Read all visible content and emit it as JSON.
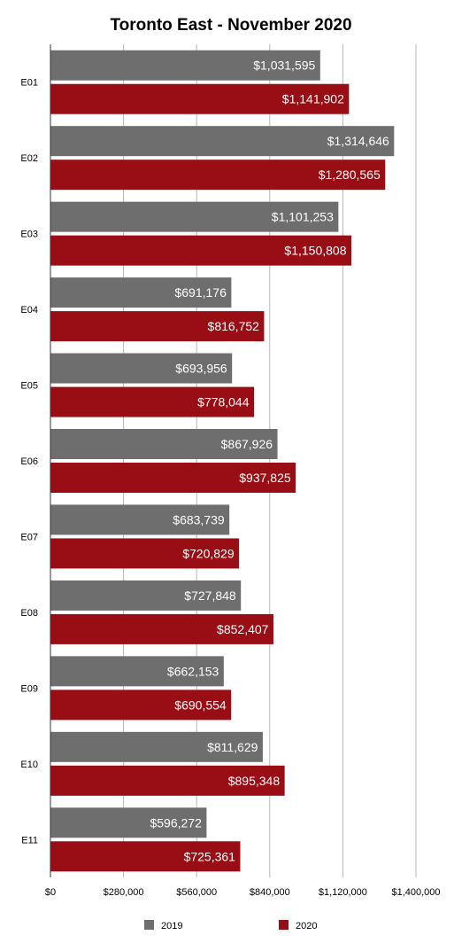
{
  "chart_data": {
    "type": "bar",
    "orientation": "horizontal",
    "title": "Toronto East - November 2020",
    "categories": [
      "E01",
      "E02",
      "E03",
      "E04",
      "E05",
      "E06",
      "E07",
      "E08",
      "E09",
      "E10",
      "E11"
    ],
    "series": [
      {
        "name": "2019",
        "color": "#6d6e6d",
        "values": [
          1031595,
          1314646,
          1101253,
          691176,
          693956,
          867926,
          683739,
          727848,
          662153,
          811629,
          596272
        ],
        "labels": [
          "$1,031,595",
          "$1,314,646",
          "$1,101,253",
          "$691,176",
          "$693,956",
          "$867,926",
          "$683,739",
          "$727,848",
          "$662,153",
          "$811,629",
          "$596,272"
        ]
      },
      {
        "name": "2020",
        "color": "#990d14",
        "values": [
          1141902,
          1280565,
          1150808,
          816752,
          778044,
          937825,
          720829,
          852407,
          690554,
          895348,
          725361
        ],
        "labels": [
          "$1,141,902",
          "$1,280,565",
          "$1,150,808",
          "$816,752",
          "$778,044",
          "$937,825",
          "$720,829",
          "$852,407",
          "$690,554",
          "$895,348",
          "$725,361"
        ]
      }
    ],
    "xlim": [
      0,
      1400000
    ],
    "ticks": [
      0,
      280000,
      560000,
      840000,
      1120000,
      1400000
    ],
    "tick_labels": [
      "$0",
      "$280,000",
      "$560,000",
      "$840,000",
      "$1,120,000",
      "$1,400,000"
    ],
    "grid": true,
    "legend_position": "bottom",
    "gridline_color": "#b7b7b7"
  }
}
